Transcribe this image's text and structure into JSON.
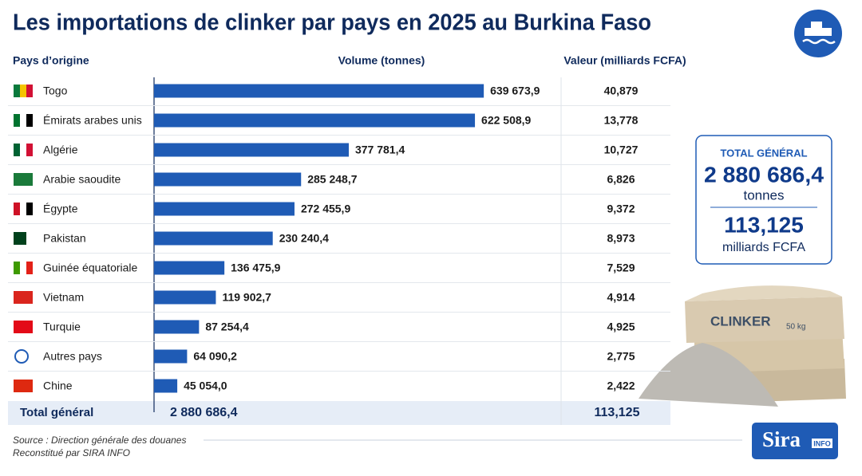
{
  "chart_data": {
    "type": "bar",
    "orientation": "horizontal",
    "title": "Les importations de clinker par pays en 2025 au Burkina Faso",
    "category_header": "Pays d’origine",
    "volume_header": "Volume (tonnes)",
    "value_header": "Valeur (milliards FCFA)",
    "categories": [
      "Togo",
      "Émirats arabes unis",
      "Algérie",
      "Arabie saoudite",
      "Égypte",
      "Pakistan",
      "Guinée équatoriale",
      "Vietnam",
      "Turquie",
      "Autres pays",
      "Chine"
    ],
    "values": [
      639673.9,
      622508.9,
      377781.4,
      285248.7,
      272455.9,
      230240.4,
      136475.9,
      119902.7,
      87254.4,
      64090.2,
      45054.0
    ],
    "value_labels": [
      "639 673,9",
      "622 508,9",
      "377 781,4",
      "285 248,7",
      "272 455,9",
      "230 240,4",
      "136 475,9",
      "119 902,7",
      "87 254,4",
      "64 090,2",
      "45 054,0"
    ],
    "color": "#1f5bb5",
    "xlim": [
      0,
      785000
    ],
    "amounts": [
      "40,879",
      "13,778",
      "10,727",
      "6,826",
      "9,372",
      "8,973",
      "7,529",
      "4,914",
      "4,925",
      "2,775",
      "2,422"
    ],
    "total": {
      "label": "Total général",
      "volume": "2 880 686,4",
      "value": "113,125"
    },
    "summary": {
      "title": "TOTAL GÉNÉRAL",
      "volume": "2 880 686,4",
      "volume_unit": "tonnes",
      "value": "113,125",
      "value_unit": "milliards FCFA"
    },
    "bag_label": "CLINKER",
    "bag_weight": "50 kg",
    "source": "Source : Direction générale des douanes",
    "credit": "Reconstitué par SIRA INFO",
    "logo": "Sira",
    "logo_tag": "INFO"
  }
}
